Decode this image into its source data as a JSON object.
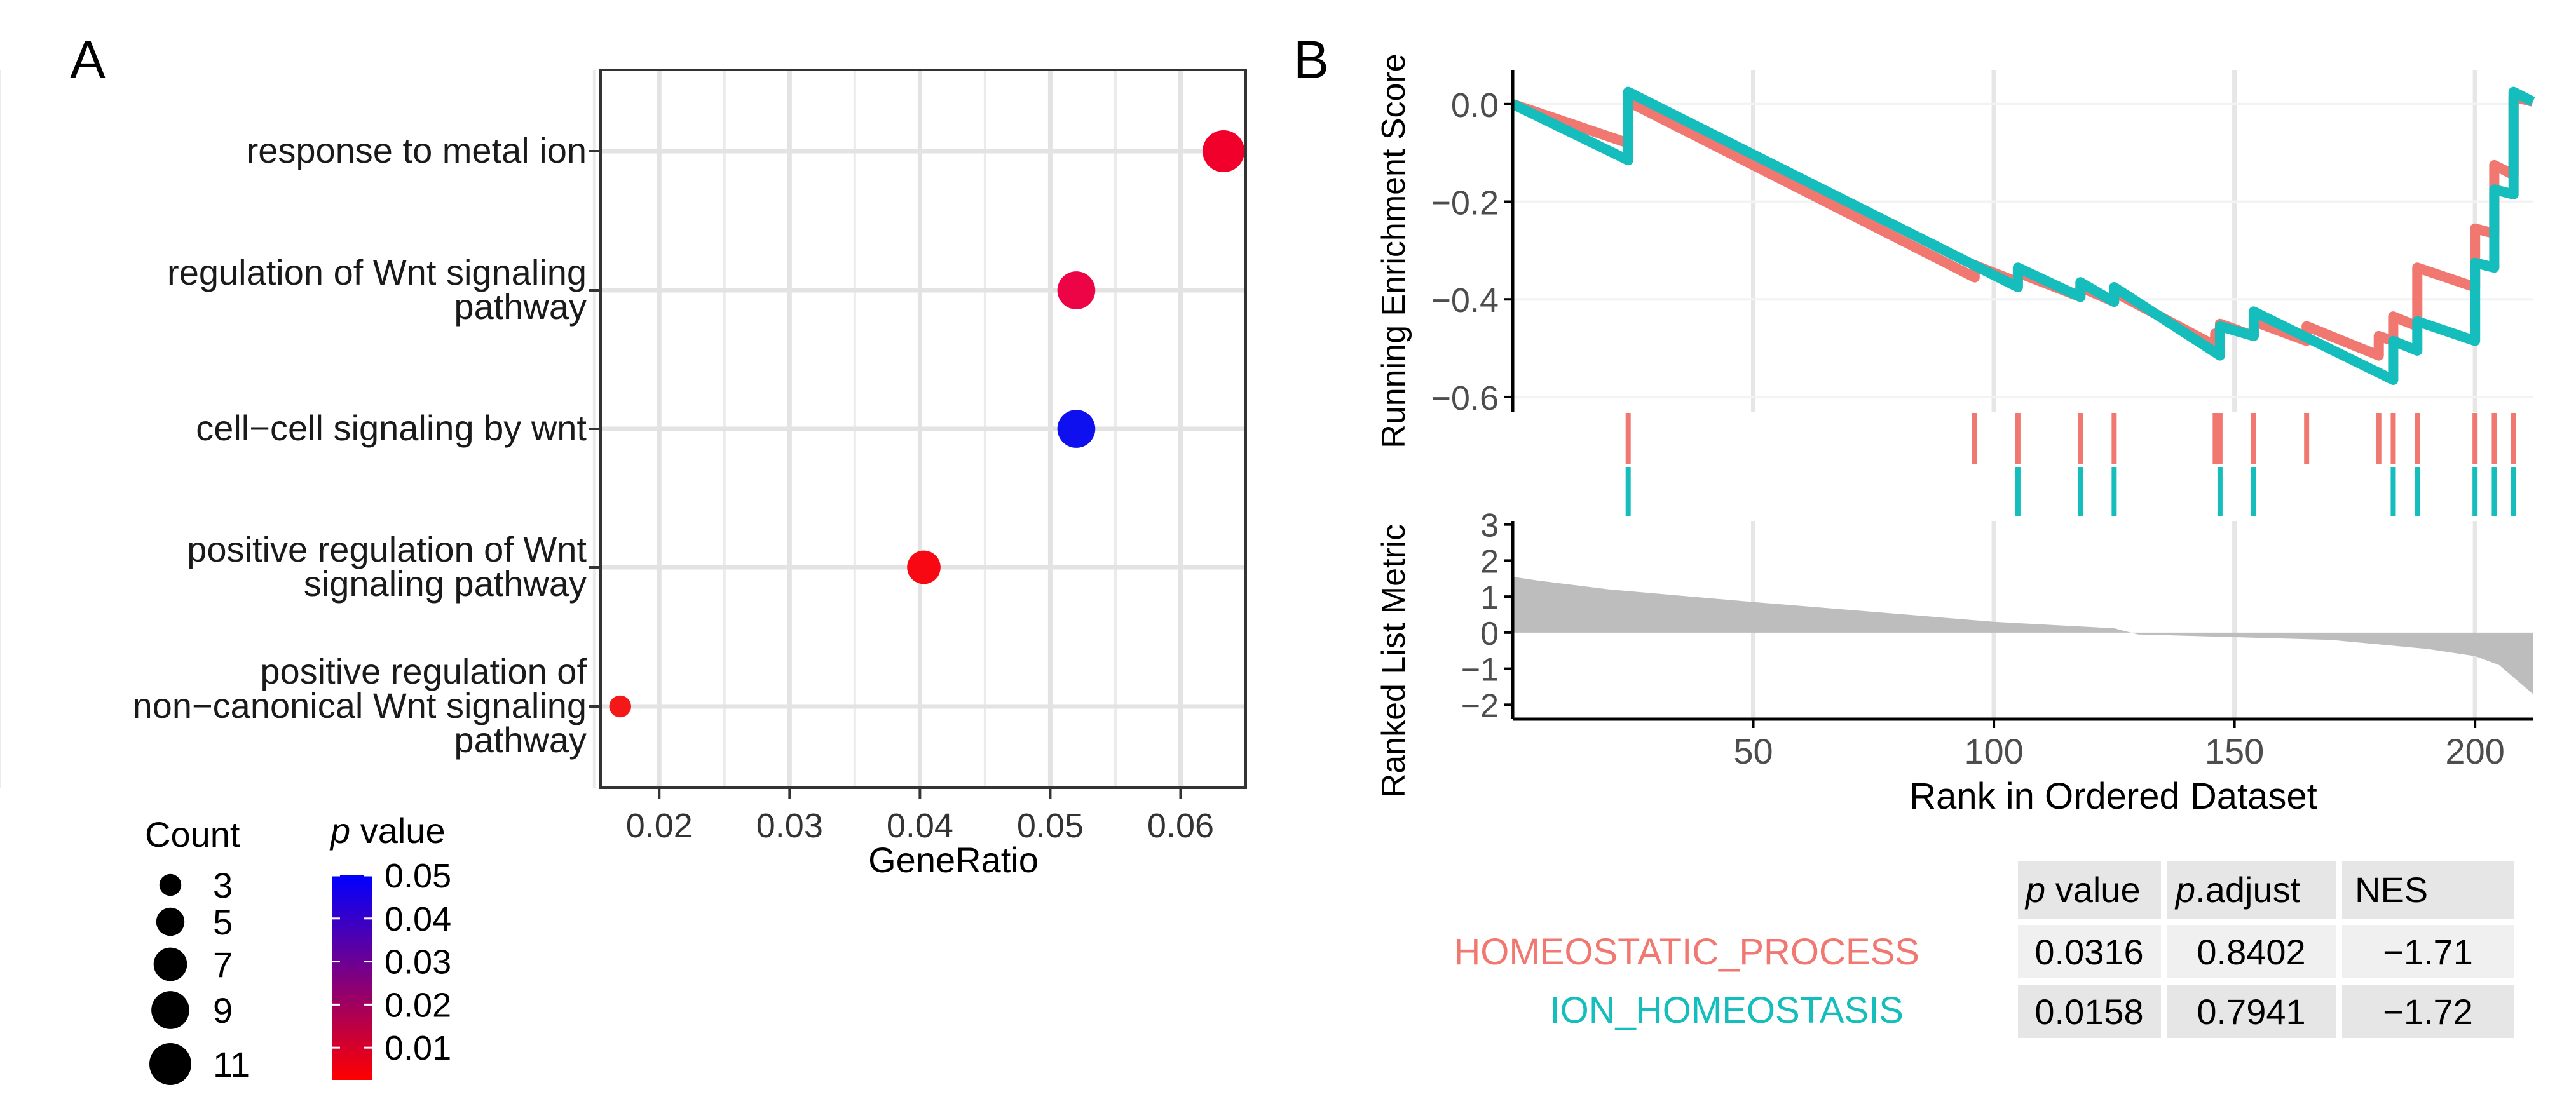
{
  "panel_labels": {
    "a": "A",
    "b": "B"
  },
  "chart_data": [
    {
      "type": "scatter",
      "subtype": "go-dotplot",
      "xlabel": "GeneRatio",
      "xlim": [
        0.0155,
        0.065
      ],
      "xticks": [
        "0.02",
        "0.03",
        "0.04",
        "0.05",
        "0.06"
      ],
      "xtick_values": [
        0.02,
        0.03,
        0.04,
        0.05,
        0.06
      ],
      "terms": [
        {
          "lines": [
            "response to metal ion"
          ],
          "gene_ratio": 0.0633,
          "count": 11,
          "p_value": 0.005,
          "color": "#F0002A"
        },
        {
          "lines": [
            "regulation of Wnt signaling",
            "pathway"
          ],
          "gene_ratio": 0.052,
          "count": 9,
          "p_value": 0.009,
          "color": "#EC0446"
        },
        {
          "lines": [
            "cell−cell signaling by wnt"
          ],
          "gene_ratio": 0.052,
          "count": 9,
          "p_value": 0.05,
          "color": "#0F10F0"
        },
        {
          "lines": [
            "positive regulation of Wnt",
            "signaling pathway"
          ],
          "gene_ratio": 0.0403,
          "count": 7,
          "p_value": 0.003,
          "color": "#F80812"
        },
        {
          "lines": [
            "positive regulation of",
            "non−canonical Wnt signaling",
            "pathway"
          ],
          "gene_ratio": 0.017,
          "count": 3,
          "p_value": 0.002,
          "color": "#F51818"
        }
      ],
      "size_legend": {
        "title": "Count",
        "items": [
          "3",
          "5",
          "7",
          "9",
          "11"
        ],
        "item_values": [
          3,
          5,
          7,
          9,
          11
        ]
      },
      "color_legend": {
        "title_italic": "p",
        "title_rest": " value",
        "ticks": [
          "0.05",
          "0.04",
          "0.03",
          "0.02",
          "0.01"
        ],
        "tick_values": [
          0.05,
          0.04,
          0.03,
          0.02,
          0.01
        ],
        "low_color": "#FF0000",
        "high_color": "#0000FF"
      }
    },
    {
      "type": "line",
      "subtype": "gsea-running-enrichment",
      "ylabel_top": "Running Enrichment Score",
      "ylabel_bottom": "Ranked List Metric",
      "xlabel": "Rank in Ordered Dataset",
      "xlim": [
        0,
        212
      ],
      "xticks": [
        "50",
        "100",
        "150",
        "200"
      ],
      "xtick_values": [
        50,
        100,
        150,
        200
      ],
      "es_ylim": [
        -0.63,
        0.07
      ],
      "es_yticks": [
        "0.0",
        "−0.2",
        "−0.4",
        "−0.6"
      ],
      "es_ytick_values": [
        0,
        -0.2,
        -0.4,
        -0.6
      ],
      "metric_ylim": [
        -2.4,
        3.1
      ],
      "metric_yticks": [
        "3",
        "2",
        "1",
        "0",
        "−1",
        "−2"
      ],
      "metric_ytick_values": [
        3,
        2,
        1,
        0,
        -1,
        -2
      ],
      "metric_profile": {
        "rank": [
          0,
          5,
          20,
          50,
          100,
          125,
          130,
          170,
          190,
          200,
          205,
          212
        ],
        "value": [
          1.55,
          1.45,
          1.2,
          0.85,
          0.3,
          0.12,
          -0.05,
          -0.2,
          -0.45,
          -0.65,
          -0.9,
          -1.7
        ]
      },
      "series": [
        {
          "name": "HOMEOSTATIC_PROCESS",
          "color": "#F07870",
          "hits": [
            24,
            96,
            105,
            118,
            125,
            146,
            147,
            154,
            165,
            180,
            183,
            188,
            200,
            204,
            208
          ],
          "es_x": [
            0,
            24,
            24,
            96,
            96,
            105,
            105,
            118,
            118,
            125,
            125,
            146,
            146,
            147,
            147,
            154,
            154,
            165,
            165,
            180,
            180,
            183,
            183,
            188,
            188,
            200,
            200,
            204,
            204,
            208,
            208,
            212
          ],
          "es_y": [
            0,
            -0.08,
            0.005,
            -0.355,
            -0.33,
            -0.365,
            -0.345,
            -0.395,
            -0.375,
            -0.405,
            -0.385,
            -0.495,
            -0.47,
            -0.475,
            -0.45,
            -0.475,
            -0.445,
            -0.485,
            -0.455,
            -0.515,
            -0.475,
            -0.485,
            -0.435,
            -0.455,
            -0.335,
            -0.375,
            -0.255,
            -0.265,
            -0.125,
            -0.145,
            0.015,
            0.005
          ]
        },
        {
          "name": "ION_HOMEOSTASIS",
          "color": "#16BDBD",
          "hits": [
            24,
            105,
            118,
            125,
            147,
            154,
            183,
            188,
            200,
            204,
            208
          ],
          "es_x": [
            0,
            24,
            24,
            105,
            105,
            118,
            118,
            125,
            125,
            147,
            147,
            154,
            154,
            183,
            183,
            188,
            188,
            200,
            200,
            204,
            204,
            208,
            208,
            212
          ],
          "es_y": [
            0,
            -0.115,
            0.025,
            -0.375,
            -0.335,
            -0.395,
            -0.365,
            -0.405,
            -0.375,
            -0.515,
            -0.455,
            -0.475,
            -0.425,
            -0.565,
            -0.485,
            -0.505,
            -0.445,
            -0.485,
            -0.325,
            -0.335,
            -0.175,
            -0.185,
            0.025,
            0.005
          ]
        }
      ],
      "table": {
        "header_p_italic": "p",
        "header_p_rest": " value",
        "header_adj_italic": "p",
        "header_adj_rest": ".adjust",
        "header_nes": "NES",
        "rows": [
          {
            "name": "HOMEOSTATIC_PROCESS",
            "p_value": "0.0316",
            "p_adjust": "0.8402",
            "nes": "−1.71",
            "color": "#F07870"
          },
          {
            "name": "ION_HOMEOSTASIS",
            "p_value": "0.0158",
            "p_adjust": "0.7941",
            "nes": "−1.72",
            "color": "#16BDBD"
          }
        ]
      }
    }
  ]
}
